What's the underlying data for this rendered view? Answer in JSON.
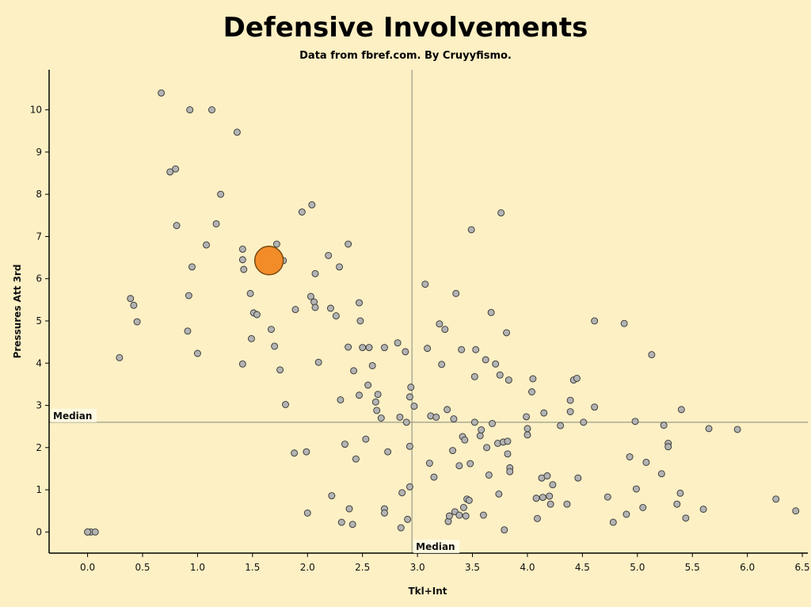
{
  "chart_data": {
    "type": "scatter",
    "title": "Defensive Involvements",
    "subtitle": "Data from fbref.com. By Cruyyfismo.",
    "xlabel": "Tkl+Int",
    "ylabel": "Pressures Att 3rd",
    "xlim": [
      -0.35,
      6.55
    ],
    "ylim": [
      -0.5,
      10.95
    ],
    "xticks": [
      "0.0",
      "0.5",
      "1.0",
      "1.5",
      "2.0",
      "2.5",
      "3.0",
      "3.5",
      "4.0",
      "4.5",
      "5.0",
      "5.5",
      "6.0",
      "6.5"
    ],
    "yticks": [
      "0",
      "1",
      "2",
      "3",
      "4",
      "5",
      "6",
      "7",
      "8",
      "9",
      "10"
    ],
    "grid": false,
    "median_x": {
      "value": 2.95,
      "label": "Median"
    },
    "median_y": {
      "value": 2.6,
      "label": "Median"
    },
    "colors": {
      "background": "#fdf0c4",
      "point": "#b3b3b3",
      "highlight": "#f28c28",
      "median_line": "#9b9b8a"
    },
    "highlight_point": {
      "x": 1.65,
      "y": 6.43
    },
    "points": [
      [
        0.0,
        0.0
      ],
      [
        0.03,
        0.0
      ],
      [
        0.07,
        0.0
      ],
      [
        0.0,
        0.0
      ],
      [
        0.29,
        4.13
      ],
      [
        0.39,
        5.53
      ],
      [
        0.42,
        5.37
      ],
      [
        0.45,
        4.98
      ],
      [
        0.67,
        10.4
      ],
      [
        0.75,
        8.53
      ],
      [
        0.8,
        8.6
      ],
      [
        0.81,
        7.26
      ],
      [
        0.93,
        10.0
      ],
      [
        0.92,
        5.6
      ],
      [
        0.91,
        4.76
      ],
      [
        0.95,
        6.28
      ],
      [
        1.0,
        4.23
      ],
      [
        1.08,
        6.8
      ],
      [
        1.13,
        10.0
      ],
      [
        1.17,
        7.3
      ],
      [
        1.21,
        8.0
      ],
      [
        1.36,
        9.47
      ],
      [
        1.41,
        6.7
      ],
      [
        1.41,
        6.45
      ],
      [
        1.42,
        6.22
      ],
      [
        1.41,
        3.98
      ],
      [
        1.48,
        5.65
      ],
      [
        1.49,
        4.58
      ],
      [
        1.51,
        5.19
      ],
      [
        1.54,
        5.15
      ],
      [
        1.71,
        6.6
      ],
      [
        1.72,
        6.82
      ],
      [
        1.78,
        6.43
      ],
      [
        1.67,
        4.8
      ],
      [
        1.7,
        4.4
      ],
      [
        1.75,
        3.84
      ],
      [
        1.8,
        3.02
      ],
      [
        1.89,
        5.27
      ],
      [
        1.88,
        1.87
      ],
      [
        1.95,
        7.58
      ],
      [
        1.99,
        1.9
      ],
      [
        2.0,
        0.45
      ],
      [
        2.04,
        7.75
      ],
      [
        2.03,
        5.58
      ],
      [
        2.06,
        5.45
      ],
      [
        2.07,
        5.32
      ],
      [
        2.07,
        6.12
      ],
      [
        2.1,
        4.02
      ],
      [
        2.19,
        6.55
      ],
      [
        2.21,
        5.3
      ],
      [
        2.26,
        5.12
      ],
      [
        2.29,
        6.28
      ],
      [
        2.3,
        3.13
      ],
      [
        2.22,
        0.86
      ],
      [
        2.37,
        6.82
      ],
      [
        2.37,
        4.38
      ],
      [
        2.34,
        2.08
      ],
      [
        2.31,
        0.23
      ],
      [
        2.38,
        0.55
      ],
      [
        2.41,
        0.18
      ],
      [
        2.42,
        3.82
      ],
      [
        2.44,
        1.73
      ],
      [
        2.47,
        5.43
      ],
      [
        2.48,
        5.0
      ],
      [
        2.47,
        3.24
      ],
      [
        2.5,
        4.37
      ],
      [
        2.53,
        2.2
      ],
      [
        2.55,
        3.48
      ],
      [
        2.56,
        4.37
      ],
      [
        2.59,
        3.94
      ],
      [
        2.62,
        3.08
      ],
      [
        2.63,
        2.88
      ],
      [
        2.64,
        3.26
      ],
      [
        2.67,
        2.7
      ],
      [
        2.7,
        4.37
      ],
      [
        2.7,
        0.55
      ],
      [
        2.7,
        0.45
      ],
      [
        2.73,
        1.9
      ],
      [
        2.82,
        4.48
      ],
      [
        2.84,
        2.72
      ],
      [
        2.86,
        0.93
      ],
      [
        2.85,
        0.1
      ],
      [
        2.89,
        4.27
      ],
      [
        2.9,
        2.6
      ],
      [
        2.91,
        0.3
      ],
      [
        2.93,
        2.03
      ],
      [
        2.93,
        1.07
      ],
      [
        2.93,
        3.2
      ],
      [
        2.94,
        3.43
      ],
      [
        2.97,
        2.98
      ],
      [
        3.07,
        5.87
      ],
      [
        3.09,
        4.35
      ],
      [
        3.11,
        1.63
      ],
      [
        3.12,
        2.75
      ],
      [
        3.15,
        1.3
      ],
      [
        3.17,
        2.72
      ],
      [
        3.2,
        4.93
      ],
      [
        3.22,
        3.97
      ],
      [
        3.25,
        4.8
      ],
      [
        3.27,
        2.9
      ],
      [
        3.28,
        0.25
      ],
      [
        3.29,
        0.38
      ],
      [
        3.32,
        1.93
      ],
      [
        3.33,
        2.68
      ],
      [
        3.34,
        0.48
      ],
      [
        3.35,
        5.65
      ],
      [
        3.38,
        0.4
      ],
      [
        3.38,
        1.57
      ],
      [
        3.4,
        4.32
      ],
      [
        3.41,
        2.26
      ],
      [
        3.42,
        0.58
      ],
      [
        3.43,
        2.18
      ],
      [
        3.44,
        0.38
      ],
      [
        3.45,
        0.78
      ],
      [
        3.47,
        0.75
      ],
      [
        3.48,
        1.62
      ],
      [
        3.49,
        7.16
      ],
      [
        3.52,
        3.68
      ],
      [
        3.53,
        4.32
      ],
      [
        3.52,
        2.6
      ],
      [
        3.57,
        2.28
      ],
      [
        3.58,
        2.42
      ],
      [
        3.6,
        0.4
      ],
      [
        3.62,
        4.08
      ],
      [
        3.63,
        2.0
      ],
      [
        3.65,
        1.35
      ],
      [
        3.67,
        5.2
      ],
      [
        3.68,
        2.57
      ],
      [
        3.71,
        3.98
      ],
      [
        3.73,
        2.1
      ],
      [
        3.74,
        0.9
      ],
      [
        3.75,
        3.72
      ],
      [
        3.76,
        7.56
      ],
      [
        3.78,
        2.13
      ],
      [
        3.79,
        0.05
      ],
      [
        3.81,
        4.72
      ],
      [
        3.82,
        2.15
      ],
      [
        3.82,
        1.85
      ],
      [
        3.83,
        3.6
      ],
      [
        3.84,
        1.52
      ],
      [
        3.84,
        1.43
      ],
      [
        3.99,
        2.73
      ],
      [
        4.0,
        2.45
      ],
      [
        4.0,
        2.3
      ],
      [
        4.04,
        3.32
      ],
      [
        4.05,
        3.63
      ],
      [
        4.08,
        0.8
      ],
      [
        4.09,
        0.32
      ],
      [
        4.13,
        1.28
      ],
      [
        4.14,
        0.82
      ],
      [
        4.15,
        2.82
      ],
      [
        4.18,
        1.33
      ],
      [
        4.2,
        0.85
      ],
      [
        4.21,
        0.66
      ],
      [
        4.23,
        1.12
      ],
      [
        4.3,
        2.52
      ],
      [
        4.36,
        0.66
      ],
      [
        4.39,
        3.12
      ],
      [
        4.39,
        2.85
      ],
      [
        4.42,
        3.6
      ],
      [
        4.45,
        3.64
      ],
      [
        4.46,
        1.28
      ],
      [
        4.51,
        2.6
      ],
      [
        4.61,
        5.0
      ],
      [
        4.61,
        2.96
      ],
      [
        4.73,
        0.83
      ],
      [
        4.78,
        0.23
      ],
      [
        4.88,
        4.94
      ],
      [
        4.9,
        0.42
      ],
      [
        4.93,
        1.78
      ],
      [
        4.98,
        2.62
      ],
      [
        4.99,
        1.02
      ],
      [
        5.05,
        0.58
      ],
      [
        5.08,
        1.65
      ],
      [
        5.13,
        4.2
      ],
      [
        5.22,
        1.38
      ],
      [
        5.24,
        2.53
      ],
      [
        5.28,
        2.1
      ],
      [
        5.28,
        2.02
      ],
      [
        5.36,
        0.66
      ],
      [
        5.39,
        0.92
      ],
      [
        5.4,
        2.9
      ],
      [
        5.44,
        0.33
      ],
      [
        5.6,
        0.54
      ],
      [
        5.65,
        2.45
      ],
      [
        5.91,
        2.43
      ],
      [
        6.26,
        0.78
      ],
      [
        6.44,
        0.5
      ]
    ]
  }
}
